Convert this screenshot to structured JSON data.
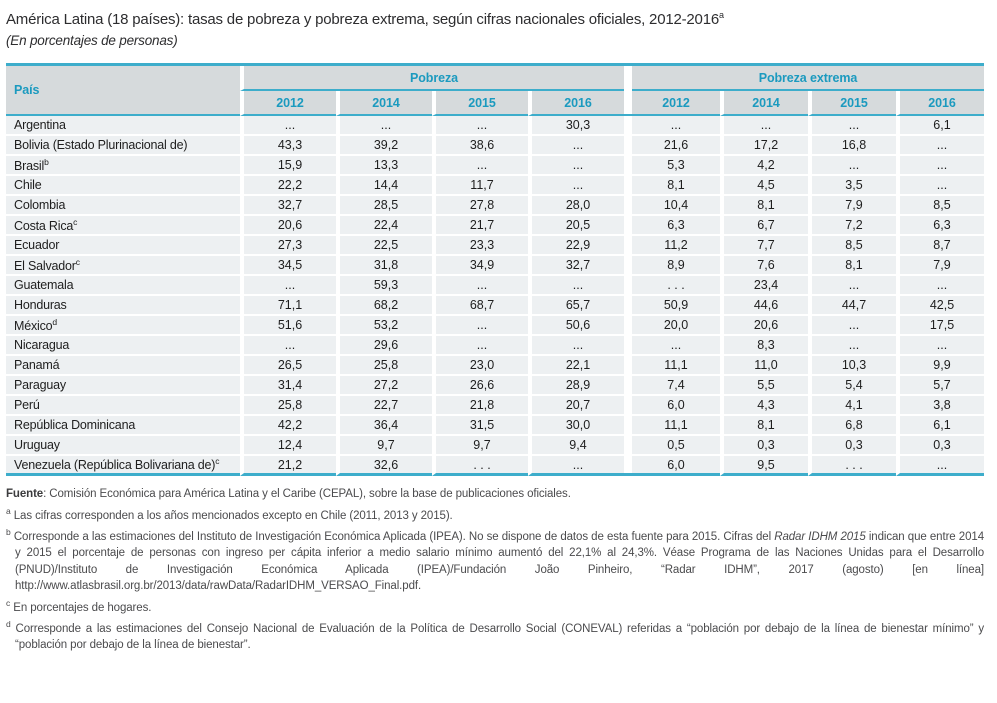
{
  "title": {
    "text": "América Latina (18 países): tasas de pobreza y pobreza extrema, según cifras nacionales oficiales, 2012-2016",
    "sup": "a",
    "subtitle": "(En porcentajes de personas)"
  },
  "colors": {
    "accent_text": "#1b9abf",
    "accent_line": "#3dadcb",
    "header_bg": "#d6dadc",
    "row_bg": "#edf0f2"
  },
  "table": {
    "country_header": "País",
    "groups": [
      {
        "label": "Pobreza",
        "years": [
          "2012",
          "2014",
          "2015",
          "2016"
        ]
      },
      {
        "label": "Pobreza extrema",
        "years": [
          "2012",
          "2014",
          "2015",
          "2016"
        ]
      }
    ],
    "rows": [
      {
        "country": "Argentina",
        "sup": "",
        "pobreza": [
          "...",
          "...",
          "...",
          "30,3"
        ],
        "extrema": [
          "...",
          "...",
          "...",
          "6,1"
        ]
      },
      {
        "country": "Bolivia (Estado Plurinacional de)",
        "sup": "",
        "pobreza": [
          "43,3",
          "39,2",
          "38,6",
          "..."
        ],
        "extrema": [
          "21,6",
          "17,2",
          "16,8",
          "..."
        ]
      },
      {
        "country": "Brasil",
        "sup": "b",
        "pobreza": [
          "15,9",
          "13,3",
          "...",
          "..."
        ],
        "extrema": [
          "5,3",
          "4,2",
          "...",
          "..."
        ]
      },
      {
        "country": "Chile",
        "sup": "",
        "pobreza": [
          "22,2",
          "14,4",
          "11,7",
          "..."
        ],
        "extrema": [
          "8,1",
          "4,5",
          "3,5",
          "..."
        ]
      },
      {
        "country": "Colombia",
        "sup": "",
        "pobreza": [
          "32,7",
          "28,5",
          "27,8",
          "28,0"
        ],
        "extrema": [
          "10,4",
          "8,1",
          "7,9",
          "8,5"
        ]
      },
      {
        "country": "Costa Rica",
        "sup": "c",
        "pobreza": [
          "20,6",
          "22,4",
          "21,7",
          "20,5"
        ],
        "extrema": [
          "6,3",
          "6,7",
          "7,2",
          "6,3"
        ]
      },
      {
        "country": "Ecuador",
        "sup": "",
        "pobreza": [
          "27,3",
          "22,5",
          "23,3",
          "22,9"
        ],
        "extrema": [
          "11,2",
          "7,7",
          "8,5",
          "8,7"
        ]
      },
      {
        "country": "El Salvador",
        "sup": "c",
        "pobreza": [
          "34,5",
          "31,8",
          "34,9",
          "32,7"
        ],
        "extrema": [
          "8,9",
          "7,6",
          "8,1",
          "7,9"
        ]
      },
      {
        "country": "Guatemala",
        "sup": "",
        "pobreza": [
          "...",
          "59,3",
          "...",
          "..."
        ],
        "extrema": [
          ". . .",
          "23,4",
          "...",
          "..."
        ]
      },
      {
        "country": "Honduras",
        "sup": "",
        "pobreza": [
          "71,1",
          "68,2",
          "68,7",
          "65,7"
        ],
        "extrema": [
          "50,9",
          "44,6",
          "44,7",
          "42,5"
        ]
      },
      {
        "country": "México",
        "sup": "d",
        "pobreza": [
          "51,6",
          "53,2",
          "...",
          "50,6"
        ],
        "extrema": [
          "20,0",
          "20,6",
          "...",
          "17,5"
        ]
      },
      {
        "country": "Nicaragua",
        "sup": "",
        "pobreza": [
          "...",
          "29,6",
          "...",
          "..."
        ],
        "extrema": [
          "...",
          "8,3",
          "...",
          "..."
        ]
      },
      {
        "country": "Panamá",
        "sup": "",
        "pobreza": [
          "26,5",
          "25,8",
          "23,0",
          "22,1"
        ],
        "extrema": [
          "11,1",
          "11,0",
          "10,3",
          "9,9"
        ]
      },
      {
        "country": "Paraguay",
        "sup": "",
        "pobreza": [
          "31,4",
          "27,2",
          "26,6",
          "28,9"
        ],
        "extrema": [
          "7,4",
          "5,5",
          "5,4",
          "5,7"
        ]
      },
      {
        "country": "Perú",
        "sup": "",
        "pobreza": [
          "25,8",
          "22,7",
          "21,8",
          "20,7"
        ],
        "extrema": [
          "6,0",
          "4,3",
          "4,1",
          "3,8"
        ]
      },
      {
        "country": "República Dominicana",
        "sup": "",
        "pobreza": [
          "42,2",
          "36,4",
          "31,5",
          "30,0"
        ],
        "extrema": [
          "11,1",
          "8,1",
          "6,8",
          "6,1"
        ]
      },
      {
        "country": "Uruguay",
        "sup": "",
        "pobreza": [
          "12,4",
          "9,7",
          "9,7",
          "9,4"
        ],
        "extrema": [
          "0,5",
          "0,3",
          "0,3",
          "0,3"
        ]
      },
      {
        "country": "Venezuela (República Bolivariana de)",
        "sup": "c",
        "pobreza": [
          "21,2",
          "32,6",
          ". . .",
          "..."
        ],
        "extrema": [
          "6,0",
          "9,5",
          ". . .",
          "..."
        ]
      }
    ]
  },
  "footnotes": {
    "fuente_label": "Fuente",
    "fuente_text": ": Comisión Económica para América Latina y el Caribe (CEPAL), sobre la base de publicaciones oficiales.",
    "notes": [
      {
        "marker": "a",
        "segments": [
          {
            "text": "Las cifras corresponden a los años mencionados excepto en Chile (2011, 2013 y 2015).",
            "italic": false
          }
        ]
      },
      {
        "marker": "b",
        "segments": [
          {
            "text": "Corresponde a las estimaciones del Instituto de Investigación Económica Aplicada (IPEA). No se dispone de datos de esta fuente para 2015. Cifras del ",
            "italic": false
          },
          {
            "text": "Radar IDHM 2015",
            "italic": true
          },
          {
            "text": " indican que entre 2014 y 2015 el porcentaje de personas con ingreso per cápita inferior a medio salario mínimo aumentó del 22,1% al 24,3%. Véase Programa de las Naciones Unidas para el Desarrollo (PNUD)/Instituto de Investigación Económica Aplicada (IPEA)/Fundación João Pinheiro, “Radar IDHM”, 2017 (agosto) [en línea] http://www.atlasbrasil.org.br/2013/data/rawData/RadarIDHM_VERSAO_Final.pdf.",
            "italic": false
          }
        ]
      },
      {
        "marker": "c",
        "segments": [
          {
            "text": "En porcentajes de hogares.",
            "italic": false
          }
        ]
      },
      {
        "marker": "d",
        "segments": [
          {
            "text": "Corresponde a las estimaciones del Consejo Nacional de Evaluación de la Política de Desarrollo Social (CONEVAL) referidas a “población por debajo de la línea de bienestar mínimo” y “población por debajo de la línea de bienestar”.",
            "italic": false
          }
        ]
      }
    ]
  }
}
